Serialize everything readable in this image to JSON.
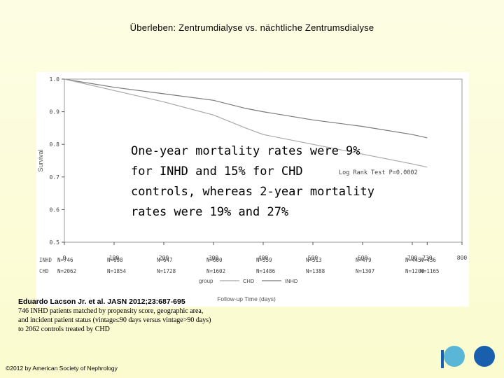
{
  "slide": {
    "title": "Überleben: Zentrumdialyse vs. nächtliche Zentrumsdialyse",
    "overlay_lines": [
      "One-year mortality rates were 9%",
      "for INHD and 15% for CHD",
      "controls, whereas 2-year mortality",
      "rates were 19% and 27%"
    ],
    "citation_head": "Eduardo Lacson Jr. et al. JASN 2012;23:687-695",
    "citation_lines": [
      "746 INHD patients matched by propensity score, geographic area,",
      "and incident patient status (vintage≤90 days versus vintage>90 days)",
      "to 2062 controls treated by CHD"
    ],
    "copyright": "©2012 by American Society of Nephrology"
  },
  "colors": {
    "background": "#fcfcd6",
    "logo_light": "#5ab6d6",
    "logo_dark": "#1a5fae",
    "inhd_line": "#7a7a7a",
    "chd_line": "#a8a8a8"
  },
  "chart_data": {
    "type": "line",
    "title": "",
    "ylabel": "Survival",
    "xlabel": "Follow-up Time (days)",
    "xlim": [
      0,
      800
    ],
    "ylim": [
      0.5,
      1.0
    ],
    "x_ticks": [
      "0",
      "100",
      "200",
      "300",
      "400",
      "500",
      "600",
      "700",
      "730",
      "800"
    ],
    "y_ticks": [
      "1.0",
      "0.9",
      "0.8",
      "0.7",
      "0.6",
      "0.5"
    ],
    "annotation": "Log Rank Test P=0.0002",
    "legend_label": "group",
    "series": [
      {
        "name": "INHD",
        "x": [
          0,
          100,
          200,
          300,
          365,
          400,
          500,
          600,
          700,
          730
        ],
        "y": [
          1.0,
          0.975,
          0.955,
          0.935,
          0.91,
          0.9,
          0.875,
          0.855,
          0.83,
          0.82
        ]
      },
      {
        "name": "CHD",
        "x": [
          0,
          100,
          200,
          300,
          365,
          400,
          500,
          600,
          700,
          730
        ],
        "y": [
          1.0,
          0.965,
          0.93,
          0.89,
          0.85,
          0.83,
          0.8,
          0.77,
          0.74,
          0.73
        ]
      }
    ],
    "at_risk": {
      "INHD": [
        "N=746",
        "N=698",
        "N=647",
        "N=600",
        "N=559",
        "N=513",
        "N=479",
        "N=445",
        "N=436"
      ],
      "CHD": [
        "N=2062",
        "N=1854",
        "N=1728",
        "N=1602",
        "N=1486",
        "N=1388",
        "N=1307",
        "N=1204",
        "N=1165"
      ],
      "x": [
        0,
        100,
        200,
        300,
        400,
        500,
        600,
        700,
        730
      ]
    }
  }
}
